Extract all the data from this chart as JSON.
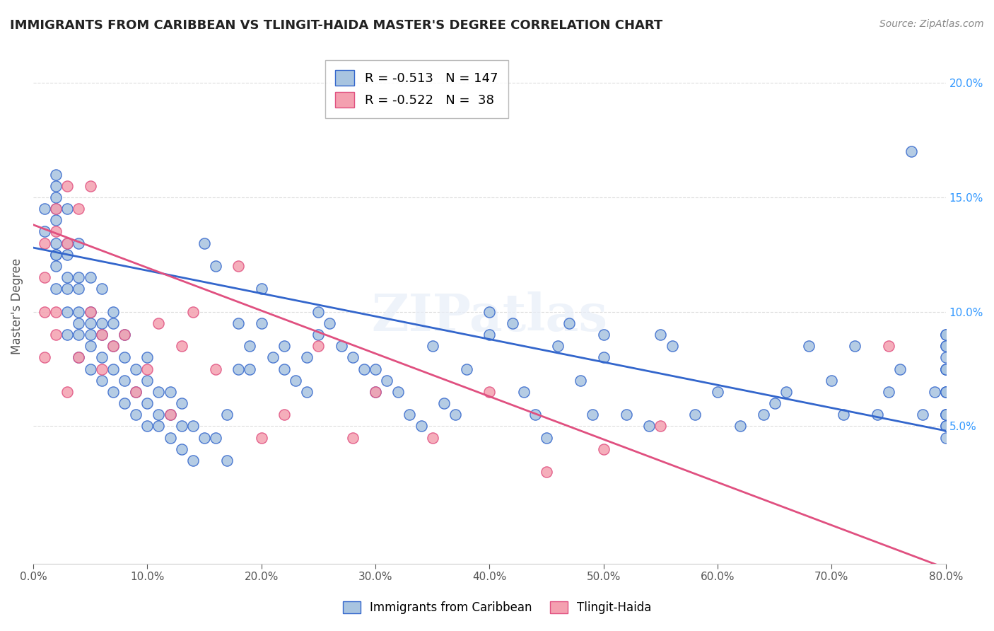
{
  "title": "IMMIGRANTS FROM CARIBBEAN VS TLINGIT-HAIDA MASTER'S DEGREE CORRELATION CHART",
  "source": "Source: ZipAtlas.com",
  "xlabel": "",
  "ylabel": "Master's Degree",
  "x_tick_labels": [
    "0.0%",
    "10.0%",
    "20.0%",
    "30.0%",
    "40.0%",
    "50.0%",
    "60.0%",
    "70.0%",
    "80.0%"
  ],
  "y_tick_labels": [
    "5.0%",
    "10.0%",
    "15.0%",
    "20.0%"
  ],
  "xlim": [
    0.0,
    0.8
  ],
  "ylim": [
    -0.01,
    0.215
  ],
  "blue_R": -0.513,
  "blue_N": 147,
  "pink_R": -0.522,
  "pink_N": 38,
  "blue_color": "#a8c4e0",
  "pink_color": "#f4a0b0",
  "blue_line_color": "#3366cc",
  "pink_line_color": "#e05080",
  "legend_label_blue": "Immigrants from Caribbean",
  "legend_label_pink": "Tlingit-Haida",
  "watermark": "ZIPatlas",
  "blue_scatter_x": [
    0.01,
    0.01,
    0.02,
    0.02,
    0.02,
    0.02,
    0.02,
    0.02,
    0.02,
    0.02,
    0.02,
    0.02,
    0.03,
    0.03,
    0.03,
    0.03,
    0.03,
    0.03,
    0.03,
    0.04,
    0.04,
    0.04,
    0.04,
    0.04,
    0.04,
    0.04,
    0.05,
    0.05,
    0.05,
    0.05,
    0.05,
    0.05,
    0.06,
    0.06,
    0.06,
    0.06,
    0.06,
    0.07,
    0.07,
    0.07,
    0.07,
    0.07,
    0.08,
    0.08,
    0.08,
    0.08,
    0.09,
    0.09,
    0.09,
    0.1,
    0.1,
    0.1,
    0.1,
    0.11,
    0.11,
    0.11,
    0.12,
    0.12,
    0.12,
    0.13,
    0.13,
    0.13,
    0.14,
    0.14,
    0.15,
    0.15,
    0.16,
    0.16,
    0.17,
    0.17,
    0.18,
    0.18,
    0.19,
    0.19,
    0.2,
    0.2,
    0.21,
    0.22,
    0.22,
    0.23,
    0.24,
    0.24,
    0.25,
    0.25,
    0.26,
    0.27,
    0.28,
    0.29,
    0.3,
    0.3,
    0.31,
    0.32,
    0.33,
    0.34,
    0.35,
    0.36,
    0.37,
    0.38,
    0.4,
    0.4,
    0.42,
    0.43,
    0.44,
    0.45,
    0.46,
    0.47,
    0.48,
    0.49,
    0.5,
    0.5,
    0.52,
    0.54,
    0.55,
    0.56,
    0.58,
    0.6,
    0.62,
    0.64,
    0.65,
    0.66,
    0.68,
    0.7,
    0.71,
    0.72,
    0.74,
    0.75,
    0.76,
    0.77,
    0.78,
    0.79,
    0.8,
    0.8,
    0.8,
    0.8,
    0.8,
    0.8,
    0.8,
    0.8,
    0.8,
    0.8,
    0.8,
    0.8,
    0.8,
    0.8,
    0.8,
    0.8,
    0.8
  ],
  "blue_scatter_y": [
    0.135,
    0.145,
    0.125,
    0.13,
    0.14,
    0.145,
    0.15,
    0.155,
    0.16,
    0.11,
    0.12,
    0.125,
    0.09,
    0.1,
    0.11,
    0.115,
    0.125,
    0.13,
    0.145,
    0.08,
    0.09,
    0.095,
    0.1,
    0.11,
    0.115,
    0.13,
    0.075,
    0.085,
    0.09,
    0.095,
    0.1,
    0.115,
    0.07,
    0.08,
    0.09,
    0.095,
    0.11,
    0.065,
    0.075,
    0.085,
    0.095,
    0.1,
    0.06,
    0.07,
    0.08,
    0.09,
    0.055,
    0.065,
    0.075,
    0.05,
    0.06,
    0.07,
    0.08,
    0.05,
    0.055,
    0.065,
    0.045,
    0.055,
    0.065,
    0.04,
    0.05,
    0.06,
    0.035,
    0.05,
    0.13,
    0.045,
    0.12,
    0.045,
    0.035,
    0.055,
    0.075,
    0.095,
    0.085,
    0.075,
    0.11,
    0.095,
    0.08,
    0.075,
    0.085,
    0.07,
    0.065,
    0.08,
    0.09,
    0.1,
    0.095,
    0.085,
    0.08,
    0.075,
    0.065,
    0.075,
    0.07,
    0.065,
    0.055,
    0.05,
    0.085,
    0.06,
    0.055,
    0.075,
    0.09,
    0.1,
    0.095,
    0.065,
    0.055,
    0.045,
    0.085,
    0.095,
    0.07,
    0.055,
    0.08,
    0.09,
    0.055,
    0.05,
    0.09,
    0.085,
    0.055,
    0.065,
    0.05,
    0.055,
    0.06,
    0.065,
    0.085,
    0.07,
    0.055,
    0.085,
    0.055,
    0.065,
    0.075,
    0.17,
    0.055,
    0.065,
    0.09,
    0.08,
    0.075,
    0.065,
    0.055,
    0.05,
    0.09,
    0.085,
    0.075,
    0.065,
    0.055,
    0.05,
    0.045,
    0.055,
    0.065,
    0.075,
    0.085
  ],
  "pink_scatter_x": [
    0.01,
    0.01,
    0.01,
    0.01,
    0.02,
    0.02,
    0.02,
    0.02,
    0.03,
    0.03,
    0.03,
    0.04,
    0.04,
    0.05,
    0.05,
    0.06,
    0.06,
    0.07,
    0.08,
    0.09,
    0.1,
    0.11,
    0.12,
    0.13,
    0.14,
    0.16,
    0.18,
    0.2,
    0.22,
    0.25,
    0.28,
    0.3,
    0.35,
    0.4,
    0.45,
    0.5,
    0.55,
    0.75
  ],
  "pink_scatter_y": [
    0.13,
    0.115,
    0.1,
    0.08,
    0.145,
    0.135,
    0.1,
    0.09,
    0.155,
    0.13,
    0.065,
    0.145,
    0.08,
    0.155,
    0.1,
    0.09,
    0.075,
    0.085,
    0.09,
    0.065,
    0.075,
    0.095,
    0.055,
    0.085,
    0.1,
    0.075,
    0.12,
    0.045,
    0.055,
    0.085,
    0.045,
    0.065,
    0.045,
    0.065,
    0.03,
    0.04,
    0.05,
    0.085
  ],
  "blue_line_x0": 0.0,
  "blue_line_x1": 0.8,
  "blue_line_y0": 0.128,
  "blue_line_y1": 0.048,
  "pink_line_x0": 0.0,
  "pink_line_x1": 0.8,
  "pink_line_y0": 0.138,
  "pink_line_y1": -0.012
}
